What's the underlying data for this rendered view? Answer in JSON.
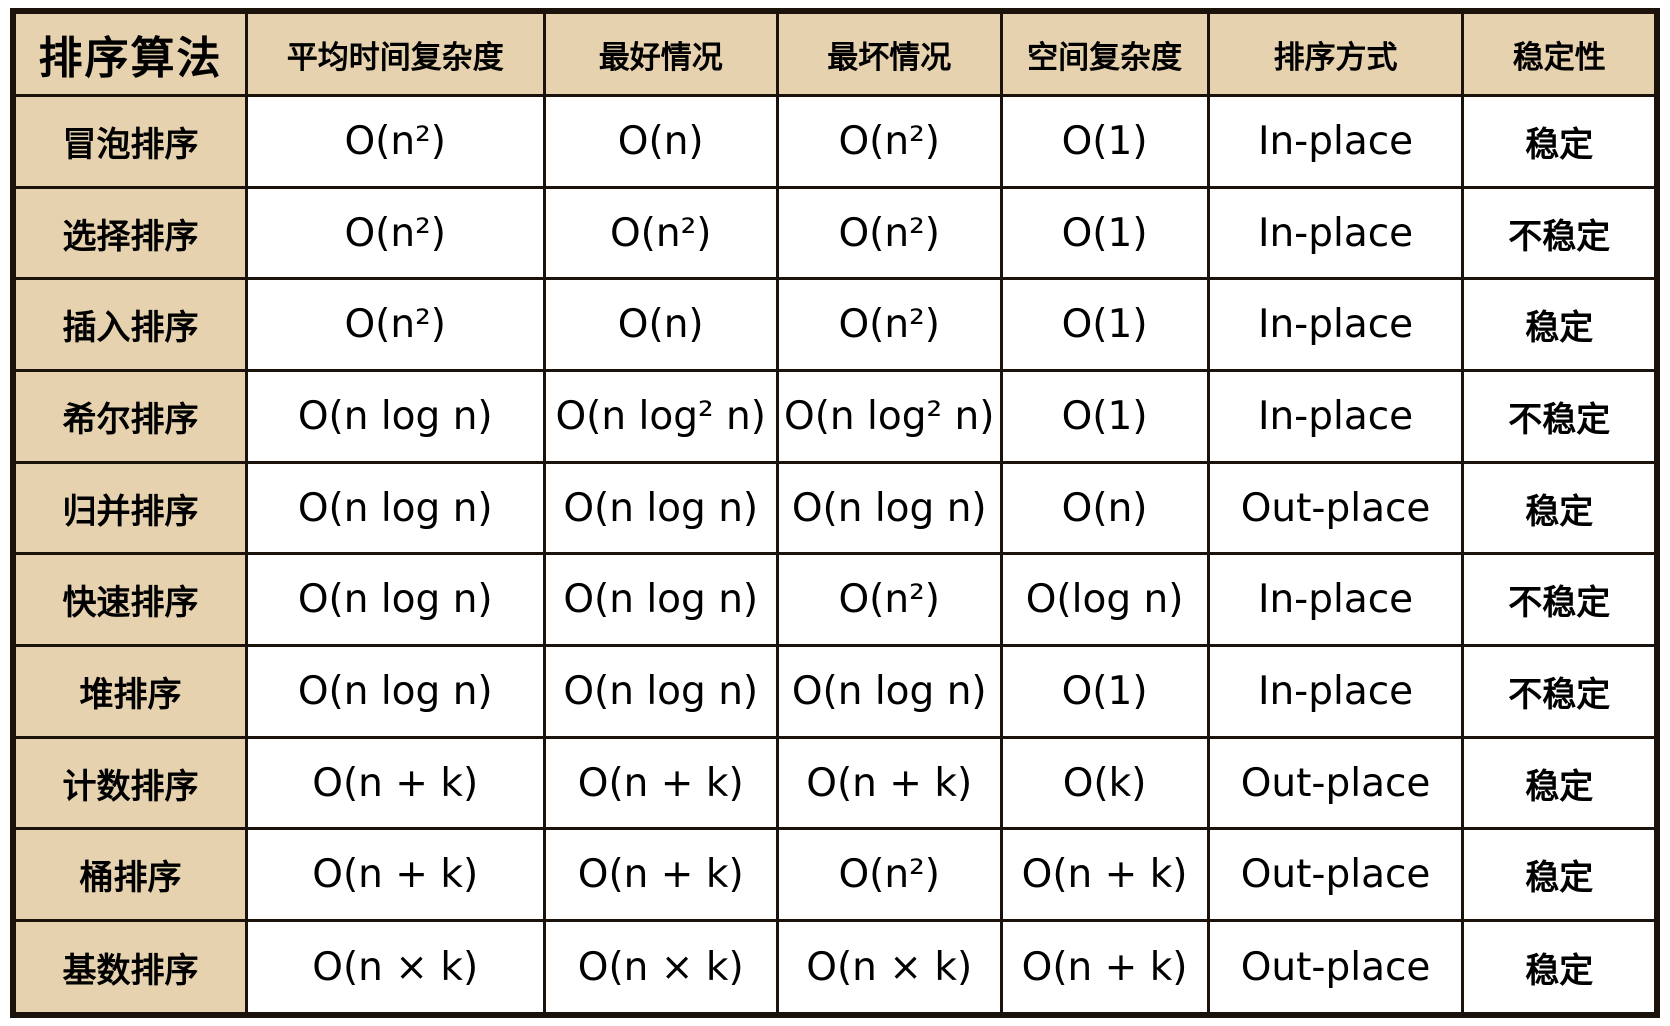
{
  "chart_data": {
    "type": "table",
    "columns": [
      "排序算法",
      "平均时间复杂度",
      "最好情况",
      "最坏情况",
      "空间复杂度",
      "排序方式",
      "稳定性"
    ],
    "rows": [
      [
        "冒泡排序",
        "O(n²)",
        "O(n)",
        "O(n²)",
        "O(1)",
        "In-place",
        "稳定"
      ],
      [
        "选择排序",
        "O(n²)",
        "O(n²)",
        "O(n²)",
        "O(1)",
        "In-place",
        "不稳定"
      ],
      [
        "插入排序",
        "O(n²)",
        "O(n)",
        "O(n²)",
        "O(1)",
        "In-place",
        "稳定"
      ],
      [
        "希尔排序",
        "O(n log n)",
        "O(n log² n)",
        "O(n log² n)",
        "O(1)",
        "In-place",
        "不稳定"
      ],
      [
        "归并排序",
        "O(n log n)",
        "O(n log n)",
        "O(n log n)",
        "O(n)",
        "Out-place",
        "稳定"
      ],
      [
        "快速排序",
        "O(n log n)",
        "O(n log n)",
        "O(n²)",
        "O(log n)",
        "In-place",
        "不稳定"
      ],
      [
        "堆排序",
        "O(n log n)",
        "O(n log n)",
        "O(n log n)",
        "O(1)",
        "In-place",
        "不稳定"
      ],
      [
        "计数排序",
        "O(n + k)",
        "O(n + k)",
        "O(n + k)",
        "O(k)",
        "Out-place",
        "稳定"
      ],
      [
        "桶排序",
        "O(n + k)",
        "O(n + k)",
        "O(n²)",
        "O(n + k)",
        "Out-place",
        "稳定"
      ],
      [
        "基数排序",
        "O(n × k)",
        "O(n × k)",
        "O(n × k)",
        "O(n + k)",
        "Out-place",
        "稳定"
      ]
    ]
  },
  "colors": {
    "header_bg": "#e6d2ae",
    "cell_bg": "#ffffff",
    "border": "#1b130b",
    "text": "#000000"
  }
}
